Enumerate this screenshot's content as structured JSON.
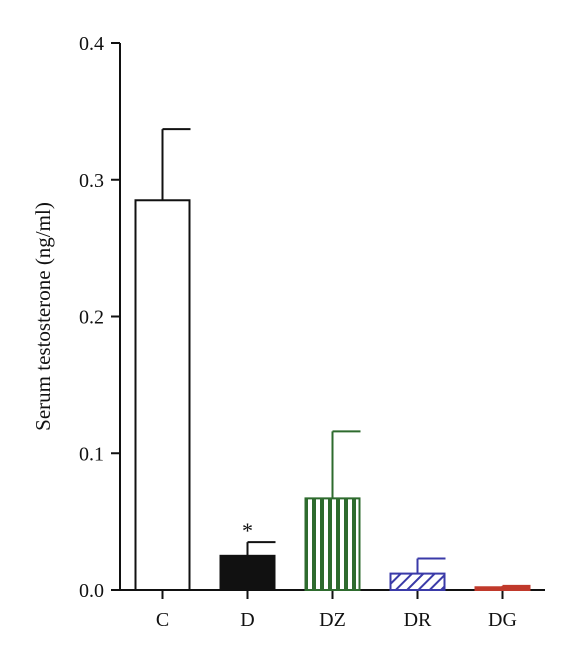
{
  "chart_data": {
    "type": "bar",
    "ylabel": "Serum testosterone (ng/ml)",
    "xlabel": "",
    "title": "",
    "ylim": [
      0,
      0.4
    ],
    "yticks": [
      "0.0",
      "0.1",
      "0.2",
      "0.3",
      "0.4"
    ],
    "grid": false,
    "categories": [
      "C",
      "D",
      "DZ",
      "DR",
      "DG"
    ],
    "values": [
      0.285,
      0.025,
      0.067,
      0.012,
      0.002
    ],
    "errors": [
      0.052,
      0.01,
      0.049,
      0.011,
      0.001
    ],
    "annotations": [
      "",
      "*",
      "",
      "",
      ""
    ],
    "bar_styles": [
      {
        "fill": "none",
        "stroke": "#111111",
        "pattern": "solid"
      },
      {
        "fill": "#111111",
        "stroke": "#111111",
        "pattern": "solid"
      },
      {
        "fill": "pattern",
        "stroke": "#2e6b2e",
        "pattern": "vertical-stripes"
      },
      {
        "fill": "pattern",
        "stroke": "#3a3aa8",
        "pattern": "diagonal-hatch"
      },
      {
        "fill": "pattern",
        "stroke": "#c0392b",
        "pattern": "horizontal-lines"
      }
    ]
  }
}
